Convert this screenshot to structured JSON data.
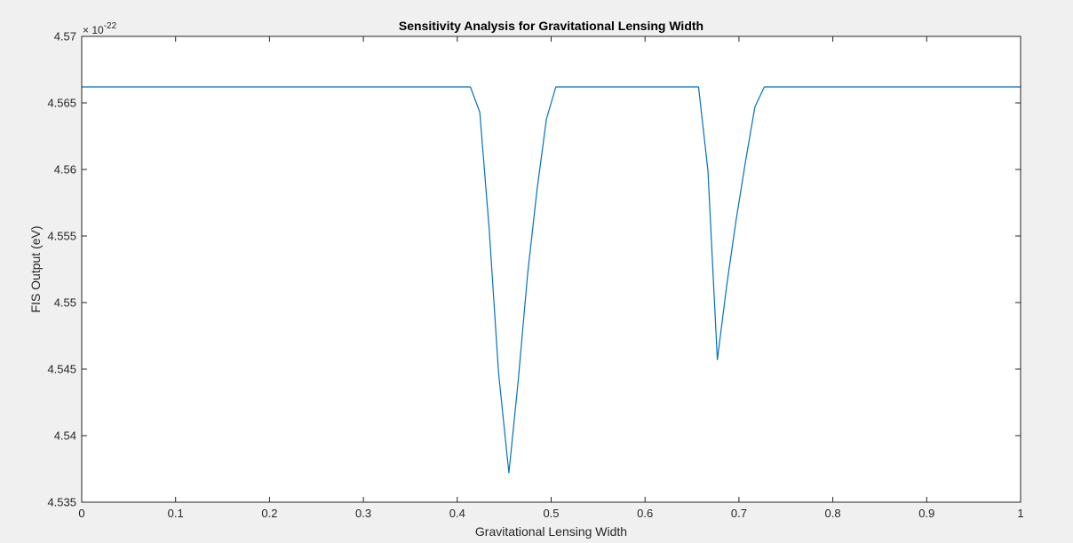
{
  "chart_data": {
    "type": "line",
    "title": "Sensitivity Analysis for Gravitational Lensing Width",
    "xlabel": "Gravitational Lensing Width",
    "ylabel": "FIS Output (eV)",
    "xlim": [
      0,
      1
    ],
    "ylim": [
      4.535,
      4.57
    ],
    "y_exponent_label": "× 10",
    "y_exponent_power": "-22",
    "x_ticks": [
      0,
      0.1,
      0.2,
      0.3,
      0.4,
      0.5,
      0.6,
      0.7,
      0.8,
      0.9,
      1
    ],
    "x_tick_labels": [
      "0",
      "0.1",
      "0.2",
      "0.3",
      "0.4",
      "0.5",
      "0.6",
      "0.7",
      "0.8",
      "0.9",
      "1"
    ],
    "y_ticks": [
      4.535,
      4.54,
      4.545,
      4.55,
      4.555,
      4.56,
      4.565,
      4.57
    ],
    "y_tick_labels": [
      "4.535",
      "4.54",
      "4.545",
      "4.55",
      "4.555",
      "4.56",
      "4.565",
      "4.57"
    ],
    "grid": false,
    "line_color": "#0072bd",
    "series": [
      {
        "x": [
          0,
          0.414,
          0.424,
          0.434,
          0.444,
          0.455,
          0.465,
          0.475,
          0.485,
          0.495,
          0.505,
          0.657,
          0.667,
          0.677,
          0.687,
          0.697,
          0.707,
          0.717,
          0.727,
          1
        ],
        "values": [
          4.5662,
          4.5662,
          4.5643,
          4.5555,
          4.5447,
          4.5372,
          4.5442,
          4.5522,
          4.5585,
          4.5638,
          4.5662,
          4.5662,
          4.5599,
          4.5457,
          4.5513,
          4.5562,
          4.5606,
          4.5647,
          4.5662,
          4.5662
        ]
      }
    ]
  }
}
